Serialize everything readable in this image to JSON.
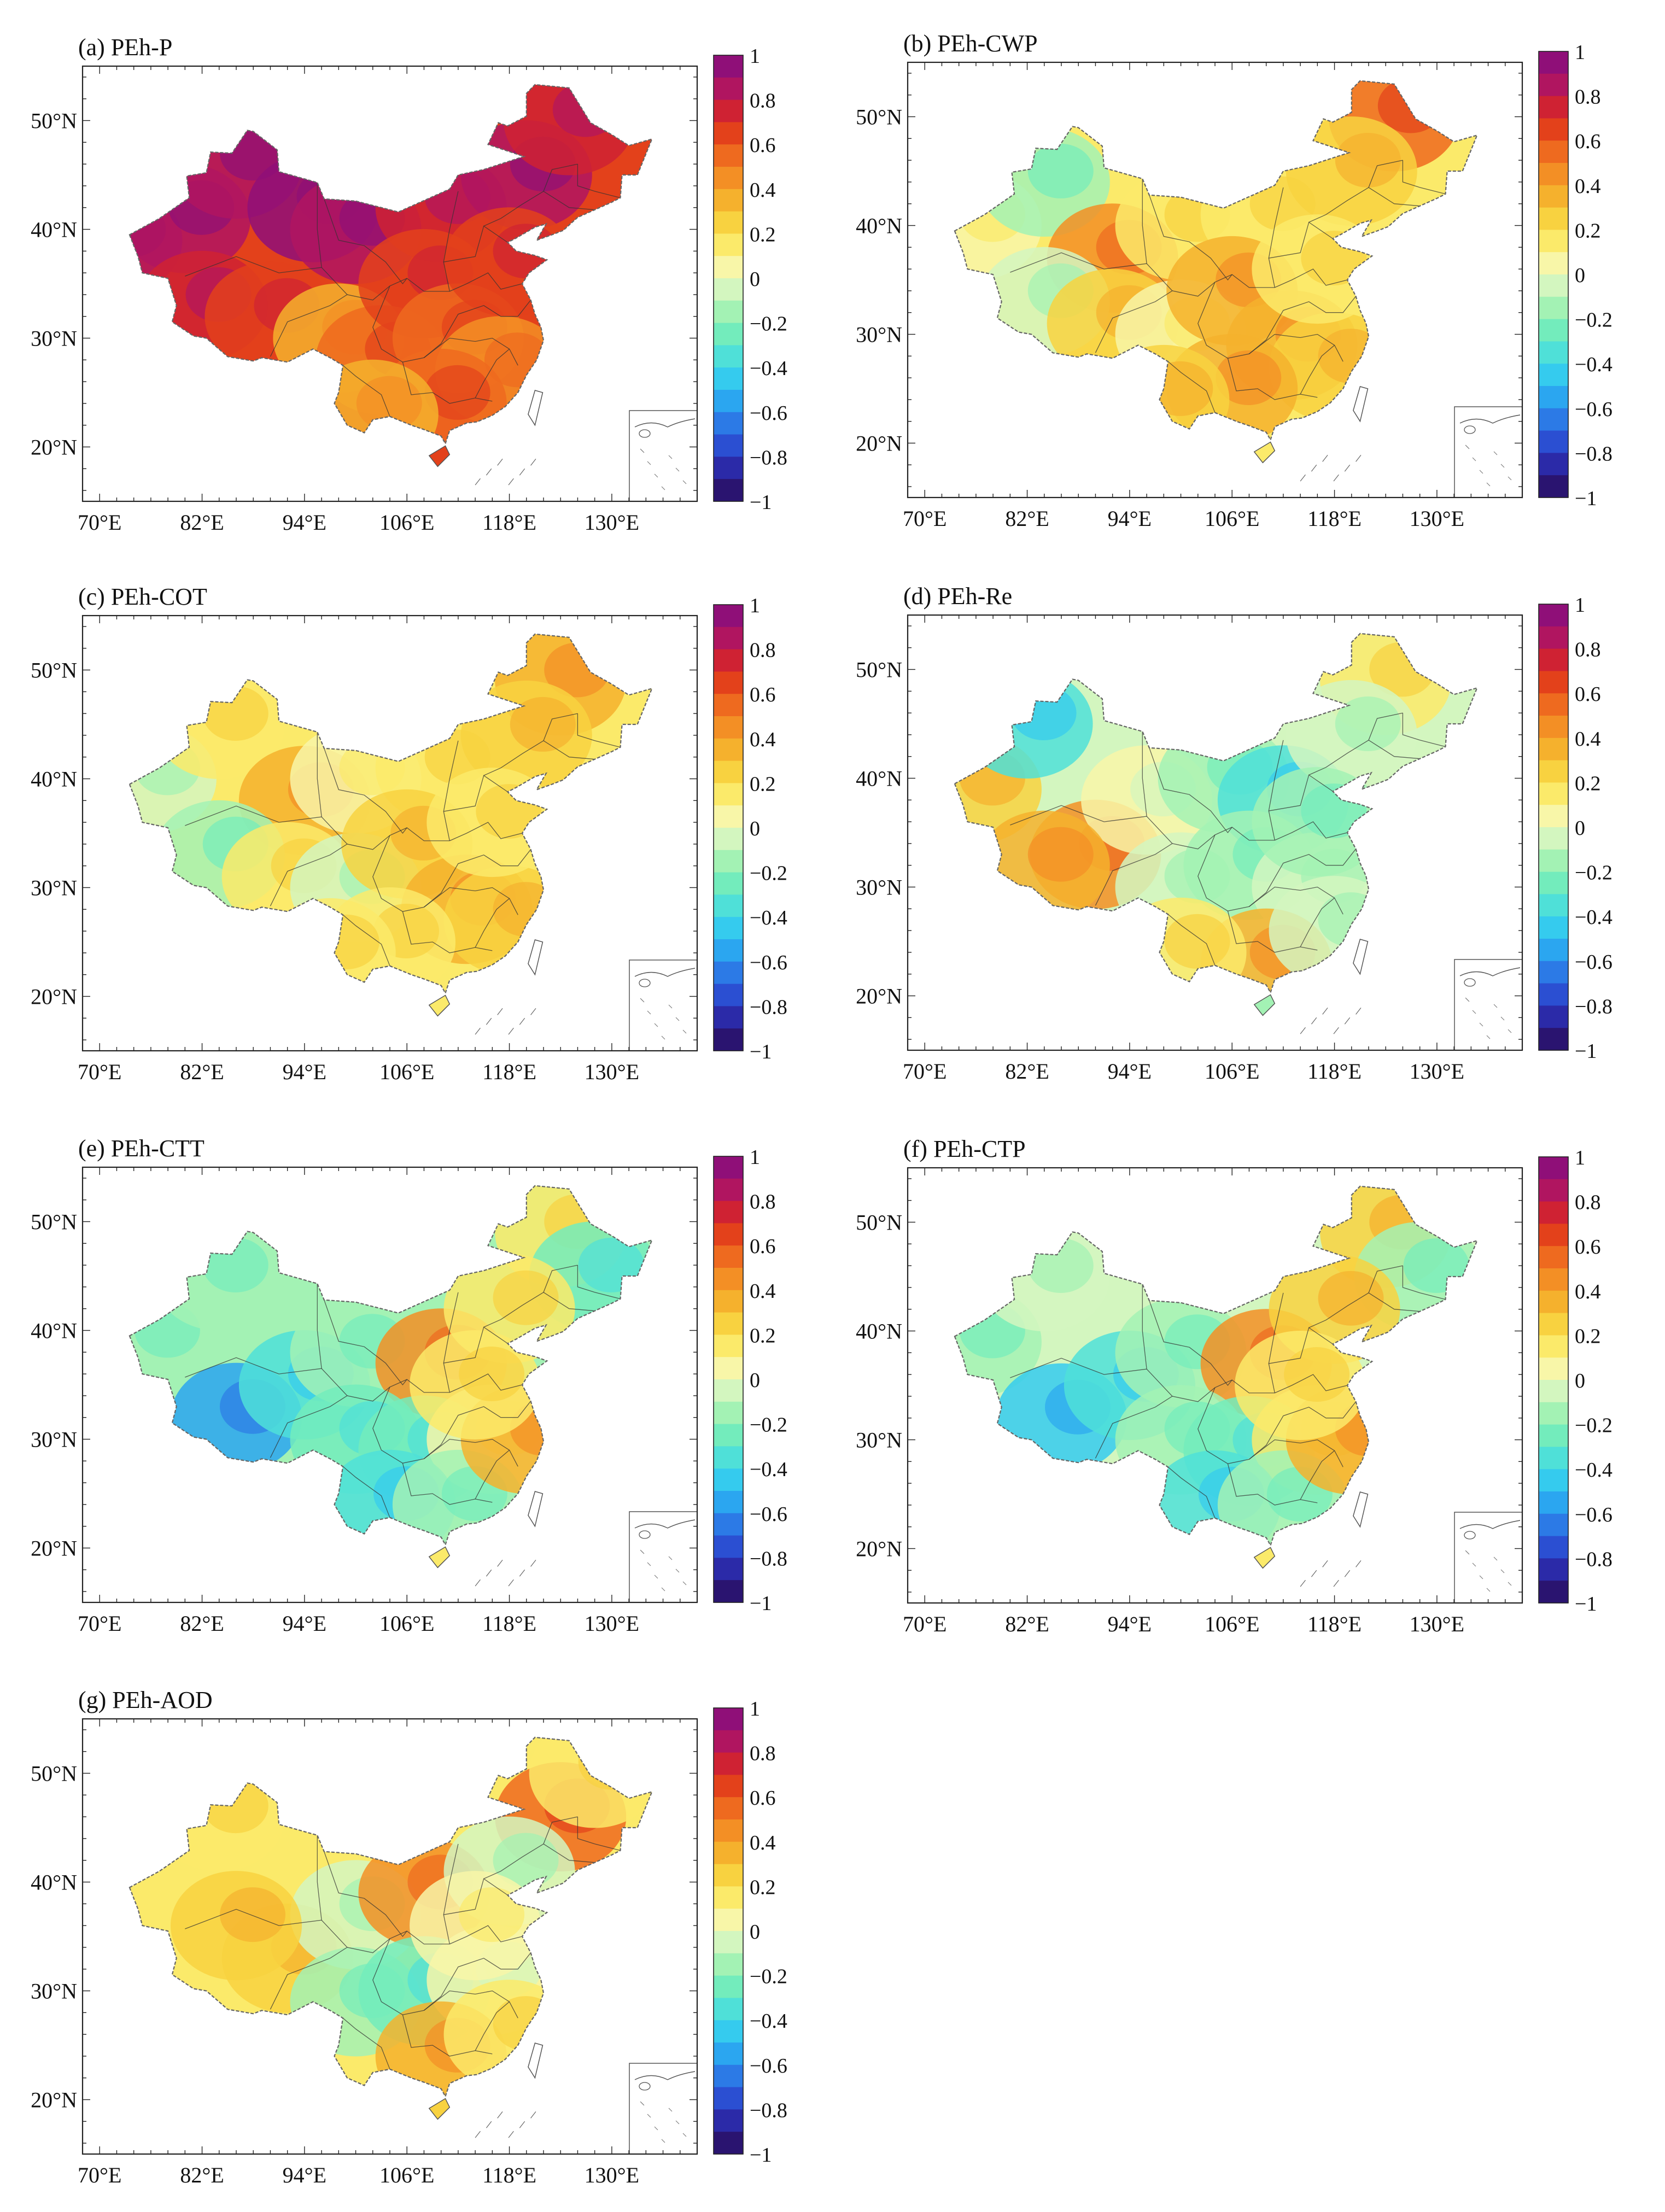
{
  "figure": {
    "panel_count": 7
  },
  "chart_data": [
    {
      "id": "a",
      "type": "heatmap",
      "title": "(a) PEh-P",
      "x_ticks": [
        "70°E",
        "82°E",
        "94°E",
        "106°E",
        "118°E",
        "130°E"
      ],
      "y_ticks": [
        "50°N",
        "40°N",
        "30°N",
        "20°N"
      ],
      "xlim": [
        68,
        140
      ],
      "ylim": [
        15,
        55
      ],
      "colorbar": {
        "min": -1,
        "max": 1,
        "ticks": [
          "1",
          "0.8",
          "0.6",
          "0.4",
          "0.2",
          "0",
          "−0.2",
          "−0.4",
          "−0.6",
          "−0.8",
          "−1"
        ]
      },
      "regions": [
        {
          "lon": 72,
          "lat": 39,
          "value": 0.85
        },
        {
          "lon": 80,
          "lat": 41,
          "value": 0.88
        },
        {
          "lon": 86,
          "lat": 46,
          "value": 0.85
        },
        {
          "lon": 95,
          "lat": 42,
          "value": 0.9
        },
        {
          "lon": 100,
          "lat": 40,
          "value": 0.85
        },
        {
          "lon": 110,
          "lat": 42,
          "value": 0.75
        },
        {
          "lon": 120,
          "lat": 45,
          "value": 0.85
        },
        {
          "lon": 125,
          "lat": 50,
          "value": 0.7
        },
        {
          "lon": 82,
          "lat": 33,
          "value": 0.75
        },
        {
          "lon": 90,
          "lat": 32,
          "value": 0.6
        },
        {
          "lon": 98,
          "lat": 30,
          "value": 0.3
        },
        {
          "lon": 103,
          "lat": 28,
          "value": 0.5
        },
        {
          "lon": 108,
          "lat": 35,
          "value": 0.6
        },
        {
          "lon": 112,
          "lat": 30,
          "value": 0.55
        },
        {
          "lon": 117,
          "lat": 27,
          "value": 0.45
        },
        {
          "lon": 110,
          "lat": 24,
          "value": 0.5
        },
        {
          "lon": 102,
          "lat": 23,
          "value": 0.35
        },
        {
          "lon": 118,
          "lat": 37,
          "value": 0.65
        }
      ]
    },
    {
      "id": "b",
      "type": "heatmap",
      "title": "(b) PEh-CWP",
      "x_ticks": [
        "70°E",
        "82°E",
        "94°E",
        "106°E",
        "118°E",
        "130°E"
      ],
      "y_ticks": [
        "50°N",
        "40°N",
        "30°N",
        "20°N"
      ],
      "xlim": [
        68,
        140
      ],
      "ylim": [
        15,
        55
      ],
      "colorbar": {
        "min": -1,
        "max": 1,
        "ticks": [
          "1",
          "0.8",
          "0.6",
          "0.4",
          "0.2",
          "0",
          "−0.2",
          "−0.4",
          "−0.6",
          "−0.8",
          "−1"
        ]
      },
      "regions": [
        {
          "lon": 76,
          "lat": 40,
          "value": 0.05
        },
        {
          "lon": 84,
          "lat": 44,
          "value": -0.2
        },
        {
          "lon": 92,
          "lat": 37,
          "value": 0.4
        },
        {
          "lon": 100,
          "lat": 40,
          "value": 0.15
        },
        {
          "lon": 110,
          "lat": 41,
          "value": 0.1
        },
        {
          "lon": 125,
          "lat": 50,
          "value": 0.5
        },
        {
          "lon": 120,
          "lat": 45,
          "value": 0.25
        },
        {
          "lon": 84,
          "lat": 33,
          "value": -0.1
        },
        {
          "lon": 92,
          "lat": 31,
          "value": 0.2
        },
        {
          "lon": 100,
          "lat": 30,
          "value": 0.05
        },
        {
          "lon": 106,
          "lat": 34,
          "value": 0.35
        },
        {
          "lon": 113,
          "lat": 29,
          "value": 0.3
        },
        {
          "lon": 118,
          "lat": 27,
          "value": 0.25
        },
        {
          "lon": 106,
          "lat": 25,
          "value": 0.3
        },
        {
          "lon": 98,
          "lat": 24,
          "value": 0.25
        },
        {
          "lon": 116,
          "lat": 36,
          "value": 0.15
        }
      ]
    },
    {
      "id": "c",
      "type": "heatmap",
      "title": "(c) PEh-COT",
      "x_ticks": [
        "70°E",
        "82°E",
        "94°E",
        "106°E",
        "118°E",
        "130°E"
      ],
      "y_ticks": [
        "50°N",
        "40°N",
        "30°N",
        "20°N"
      ],
      "xlim": [
        68,
        140
      ],
      "ylim": [
        15,
        55
      ],
      "colorbar": {
        "min": -1,
        "max": 1,
        "ticks": [
          "1",
          "0.8",
          "0.6",
          "0.4",
          "0.2",
          "0",
          "−0.2",
          "−0.4",
          "−0.6",
          "−0.8",
          "−1"
        ]
      },
      "regions": [
        {
          "lon": 76,
          "lat": 40,
          "value": -0.1
        },
        {
          "lon": 84,
          "lat": 45,
          "value": 0.1
        },
        {
          "lon": 94,
          "lat": 38,
          "value": 0.35
        },
        {
          "lon": 100,
          "lat": 40,
          "value": 0.05
        },
        {
          "lon": 110,
          "lat": 41,
          "value": 0.15
        },
        {
          "lon": 124,
          "lat": 49,
          "value": 0.35
        },
        {
          "lon": 120,
          "lat": 44,
          "value": 0.2
        },
        {
          "lon": 84,
          "lat": 33,
          "value": -0.15
        },
        {
          "lon": 92,
          "lat": 31,
          "value": 0.1
        },
        {
          "lon": 100,
          "lat": 30,
          "value": -0.1
        },
        {
          "lon": 106,
          "lat": 34,
          "value": 0.2
        },
        {
          "lon": 113,
          "lat": 28,
          "value": 0.3
        },
        {
          "lon": 118,
          "lat": 27,
          "value": 0.2
        },
        {
          "lon": 104,
          "lat": 25,
          "value": 0.15
        },
        {
          "lon": 97,
          "lat": 24,
          "value": 0.1
        },
        {
          "lon": 116,
          "lat": 36,
          "value": 0.1
        }
      ]
    },
    {
      "id": "d",
      "type": "heatmap",
      "title": "(d) PEh-Re",
      "x_ticks": [
        "70°E",
        "82°E",
        "94°E",
        "106°E",
        "118°E",
        "130°E"
      ],
      "y_ticks": [
        "50°N",
        "40°N",
        "30°N",
        "20°N"
      ],
      "xlim": [
        68,
        140
      ],
      "ylim": [
        15,
        55
      ],
      "colorbar": {
        "min": -1,
        "max": 1,
        "ticks": [
          "1",
          "0.8",
          "0.6",
          "0.4",
          "0.2",
          "0",
          "−0.2",
          "−0.4",
          "−0.6",
          "−0.8",
          "−1"
        ]
      },
      "regions": [
        {
          "lon": 76,
          "lat": 39,
          "value": 0.25
        },
        {
          "lon": 82,
          "lat": 45,
          "value": -0.4
        },
        {
          "lon": 90,
          "lat": 33,
          "value": 0.4
        },
        {
          "lon": 96,
          "lat": 38,
          "value": 0.0
        },
        {
          "lon": 105,
          "lat": 40,
          "value": -0.15
        },
        {
          "lon": 112,
          "lat": 38,
          "value": -0.35
        },
        {
          "lon": 124,
          "lat": 49,
          "value": 0.1
        },
        {
          "lon": 120,
          "lat": 44,
          "value": -0.1
        },
        {
          "lon": 84,
          "lat": 32,
          "value": 0.35
        },
        {
          "lon": 100,
          "lat": 30,
          "value": -0.1
        },
        {
          "lon": 108,
          "lat": 32,
          "value": -0.2
        },
        {
          "lon": 116,
          "lat": 30,
          "value": -0.1
        },
        {
          "lon": 110,
          "lat": 23,
          "value": 0.3
        },
        {
          "lon": 100,
          "lat": 24,
          "value": 0.15
        },
        {
          "lon": 118,
          "lat": 26,
          "value": -0.05
        },
        {
          "lon": 116,
          "lat": 36,
          "value": -0.2
        }
      ]
    },
    {
      "id": "e",
      "type": "heatmap",
      "title": "(e) PEh-CTT",
      "x_ticks": [
        "70°E",
        "82°E",
        "94°E",
        "106°E",
        "118°E",
        "130°E"
      ],
      "y_ticks": [
        "50°N",
        "40°N",
        "30°N",
        "20°N"
      ],
      "xlim": [
        68,
        140
      ],
      "ylim": [
        15,
        55
      ],
      "colorbar": {
        "min": -1,
        "max": 1,
        "ticks": [
          "1",
          "0.8",
          "0.6",
          "0.4",
          "0.2",
          "0",
          "−0.2",
          "−0.4",
          "−0.6",
          "−0.8",
          "−1"
        ]
      },
      "regions": [
        {
          "lon": 76,
          "lat": 39,
          "value": -0.2
        },
        {
          "lon": 84,
          "lat": 45,
          "value": -0.15
        },
        {
          "lon": 86,
          "lat": 32,
          "value": -0.55
        },
        {
          "lon": 94,
          "lat": 35,
          "value": -0.4
        },
        {
          "lon": 100,
          "lat": 38,
          "value": -0.2
        },
        {
          "lon": 110,
          "lat": 37,
          "value": 0.4
        },
        {
          "lon": 124,
          "lat": 49,
          "value": 0.1
        },
        {
          "lon": 128,
          "lat": 45,
          "value": -0.3
        },
        {
          "lon": 118,
          "lat": 42,
          "value": 0.15
        },
        {
          "lon": 100,
          "lat": 30,
          "value": -0.25
        },
        {
          "lon": 108,
          "lat": 29,
          "value": -0.3
        },
        {
          "lon": 116,
          "lat": 30,
          "value": 0.05
        },
        {
          "lon": 104,
          "lat": 24,
          "value": -0.35
        },
        {
          "lon": 112,
          "lat": 24,
          "value": -0.2
        },
        {
          "lon": 120,
          "lat": 30,
          "value": 0.3
        },
        {
          "lon": 114,
          "lat": 35,
          "value": 0.1
        }
      ]
    },
    {
      "id": "f",
      "type": "heatmap",
      "title": "(f) PEh-CTP",
      "x_ticks": [
        "70°E",
        "82°E",
        "94°E",
        "106°E",
        "118°E",
        "130°E"
      ],
      "y_ticks": [
        "50°N",
        "40°N",
        "30°N",
        "20°N"
      ],
      "xlim": [
        68,
        140
      ],
      "ylim": [
        15,
        55
      ],
      "colorbar": {
        "min": -1,
        "max": 1,
        "ticks": [
          "1",
          "0.8",
          "0.6",
          "0.4",
          "0.2",
          "0",
          "−0.2",
          "−0.4",
          "−0.6",
          "−0.8",
          "−1"
        ]
      },
      "regions": [
        {
          "lon": 76,
          "lat": 39,
          "value": -0.2
        },
        {
          "lon": 84,
          "lat": 45,
          "value": -0.1
        },
        {
          "lon": 86,
          "lat": 32,
          "value": -0.5
        },
        {
          "lon": 94,
          "lat": 35,
          "value": -0.35
        },
        {
          "lon": 100,
          "lat": 38,
          "value": -0.15
        },
        {
          "lon": 110,
          "lat": 37,
          "value": 0.45
        },
        {
          "lon": 124,
          "lat": 49,
          "value": 0.2
        },
        {
          "lon": 128,
          "lat": 45,
          "value": -0.2
        },
        {
          "lon": 118,
          "lat": 42,
          "value": 0.2
        },
        {
          "lon": 100,
          "lat": 30,
          "value": -0.2
        },
        {
          "lon": 108,
          "lat": 29,
          "value": -0.3
        },
        {
          "lon": 116,
          "lat": 30,
          "value": 0.1
        },
        {
          "lon": 104,
          "lat": 24,
          "value": -0.35
        },
        {
          "lon": 112,
          "lat": 24,
          "value": -0.2
        },
        {
          "lon": 120,
          "lat": 30,
          "value": 0.3
        },
        {
          "lon": 114,
          "lat": 35,
          "value": 0.15
        }
      ]
    },
    {
      "id": "g",
      "type": "heatmap",
      "title": "(g) PEh-AOD",
      "x_ticks": [
        "70°E",
        "82°E",
        "94°E",
        "106°E",
        "118°E",
        "130°E"
      ],
      "y_ticks": [
        "50°N",
        "40°N",
        "30°N",
        "20°N"
      ],
      "xlim": [
        68,
        140
      ],
      "ylim": [
        15,
        55
      ],
      "colorbar": {
        "min": -1,
        "max": 1,
        "ticks": [
          "1",
          "0.8",
          "0.6",
          "0.4",
          "0.2",
          "0",
          "−0.2",
          "−0.4",
          "−0.6",
          "−0.8",
          "−1"
        ]
      },
      "regions": [
        {
          "lon": 84,
          "lat": 46,
          "value": 0.1
        },
        {
          "lon": 92,
          "lat": 33,
          "value": 0.2
        },
        {
          "lon": 100,
          "lat": 37,
          "value": -0.1
        },
        {
          "lon": 108,
          "lat": 39,
          "value": 0.45
        },
        {
          "lon": 124,
          "lat": 46,
          "value": 0.5
        },
        {
          "lon": 128,
          "lat": 50,
          "value": 0.1
        },
        {
          "lon": 118,
          "lat": 41,
          "value": -0.1
        },
        {
          "lon": 100,
          "lat": 29,
          "value": -0.2
        },
        {
          "lon": 108,
          "lat": 30,
          "value": -0.25
        },
        {
          "lon": 116,
          "lat": 31,
          "value": 0.0
        },
        {
          "lon": 110,
          "lat": 24,
          "value": 0.3
        },
        {
          "lon": 118,
          "lat": 26,
          "value": 0.15
        },
        {
          "lon": 114,
          "lat": 36,
          "value": 0.05
        },
        {
          "lon": 86,
          "lat": 36,
          "value": 0.25
        }
      ]
    }
  ]
}
